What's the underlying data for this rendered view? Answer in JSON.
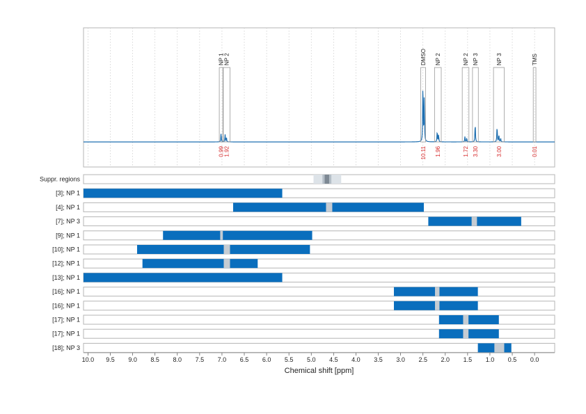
{
  "chart_data": {
    "type": "nmr-spectrum-with-range-bars",
    "xlabel": "Chemical shift [ppm]",
    "xlim": [
      10.1,
      -0.45
    ],
    "x_ticks": [
      "10.0",
      "9.5",
      "9.0",
      "8.5",
      "8.0",
      "7.5",
      "7.0",
      "6.5",
      "6.0",
      "5.5",
      "5.0",
      "4.5",
      "4.0",
      "3.5",
      "3.0",
      "2.5",
      "2.0",
      "1.5",
      "1.0",
      "0.5",
      "0.0"
    ],
    "x_tick_values": [
      10.0,
      9.5,
      9.0,
      8.5,
      8.0,
      7.5,
      7.0,
      6.5,
      6.0,
      5.5,
      5.0,
      4.5,
      4.0,
      3.5,
      3.0,
      2.5,
      2.0,
      1.5,
      1.0,
      0.5,
      0.0
    ],
    "colors": {
      "spectrum": "#1f6fb0",
      "bar": "#0a6ebd",
      "gap": "#c5ccd3",
      "suppr_light": "#dde3e8",
      "suppr_dark": "#7d8893",
      "integral": "#d62728",
      "frame": "#b5b5b5",
      "grid": "#c8c8c8"
    },
    "peaks": [
      {
        "x": 7.02,
        "h": 0.12
      },
      {
        "x": 6.93,
        "h": 0.1
      },
      {
        "x": 6.9,
        "h": 0.06
      },
      {
        "x": 2.5,
        "h": 0.82
      },
      {
        "x": 2.47,
        "h": 0.6
      },
      {
        "x": 2.18,
        "h": 0.15
      },
      {
        "x": 2.15,
        "h": 0.1
      },
      {
        "x": 1.56,
        "h": 0.07
      },
      {
        "x": 1.52,
        "h": 0.05
      },
      {
        "x": 1.33,
        "h": 0.26
      },
      {
        "x": 0.84,
        "h": 0.22
      },
      {
        "x": 0.8,
        "h": 0.1
      },
      {
        "x": 0.76,
        "h": 0.05
      }
    ],
    "peak_boxes": [
      {
        "label": "NP 1",
        "x1": 7.06,
        "x2": 6.98,
        "integral": "0.99"
      },
      {
        "label": "NP 2",
        "x1": 6.97,
        "x2": 6.82,
        "integral": "1.92"
      },
      {
        "label": "DMSO",
        "x1": 2.55,
        "x2": 2.44,
        "integral": "10.11"
      },
      {
        "label": "NP 2",
        "x1": 2.24,
        "x2": 2.09,
        "integral": "1.96"
      },
      {
        "label": "NP 2",
        "x1": 1.62,
        "x2": 1.47,
        "integral": "1.72"
      },
      {
        "label": "NP 3",
        "x1": 1.39,
        "x2": 1.26,
        "integral": "3.30"
      },
      {
        "label": "NP 3",
        "x1": 0.92,
        "x2": 0.68,
        "integral": "3.00"
      },
      {
        "label": "TMS",
        "x1": 0.03,
        "x2": -0.03,
        "integral": "0.01"
      }
    ],
    "suppr_regions": {
      "label": "Suppr. regions",
      "outer": [
        4.95,
        4.33
      ],
      "middle": [
        4.75,
        4.55
      ],
      "inner": [
        4.7,
        4.6
      ]
    },
    "rows": [
      {
        "label": "[3]; NP 1",
        "start": 10.1,
        "end": 5.65,
        "gaps": []
      },
      {
        "label": "[4]; NP 1",
        "start": 6.75,
        "end": 2.48,
        "gaps": [
          [
            4.67,
            4.53
          ]
        ]
      },
      {
        "label": "[7]; NP 3",
        "start": 2.38,
        "end": 0.3,
        "gaps": [
          [
            1.41,
            1.29
          ]
        ]
      },
      {
        "label": "[9]; NP 1",
        "start": 8.32,
        "end": 4.98,
        "gaps": [
          [
            7.04,
            6.98
          ]
        ]
      },
      {
        "label": "[10]; NP 1",
        "start": 8.9,
        "end": 5.03,
        "gaps": [
          [
            6.96,
            6.82
          ]
        ]
      },
      {
        "label": "[12]; NP 1",
        "start": 8.78,
        "end": 6.2,
        "gaps": [
          [
            6.96,
            6.82
          ]
        ]
      },
      {
        "label": "[13]; NP 1",
        "start": 10.1,
        "end": 5.65,
        "gaps": []
      },
      {
        "label": "[16]; NP 1",
        "start": 3.15,
        "end": 1.27,
        "gaps": [
          [
            2.23,
            2.13
          ]
        ]
      },
      {
        "label": "[16]; NP 1",
        "start": 3.15,
        "end": 1.27,
        "gaps": [
          [
            2.23,
            2.13
          ]
        ]
      },
      {
        "label": "[17]; NP 1",
        "start": 2.14,
        "end": 0.8,
        "gaps": [
          [
            1.6,
            1.48
          ]
        ]
      },
      {
        "label": "[17]; NP 1",
        "start": 2.14,
        "end": 0.8,
        "gaps": [
          [
            1.6,
            1.48
          ]
        ]
      },
      {
        "label": "[18]; NP 3",
        "start": 1.27,
        "end": 0.52,
        "gaps": [
          [
            0.9,
            0.68
          ]
        ]
      }
    ]
  }
}
